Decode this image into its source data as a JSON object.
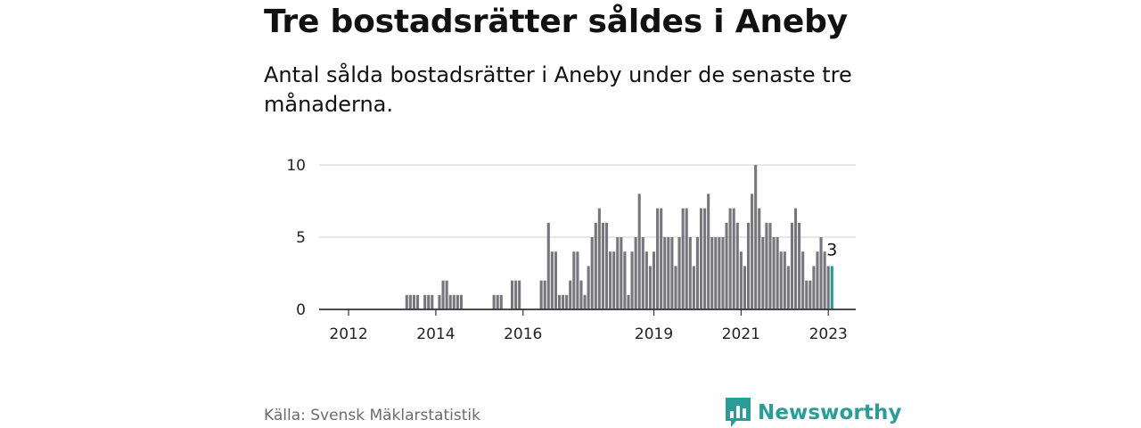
{
  "header": {
    "title": "Tre bostadsrätter såldes i Aneby",
    "subtitle": "Antal sålda bostadsrätter i Aneby under de senaste tre månaderna."
  },
  "footer": {
    "source": "Källa: Svensk Mäklarstatistik",
    "brand": "Newsworthy"
  },
  "colors": {
    "bar": "#76767c",
    "highlight": "#1a9e96",
    "brand": "#2a9d97",
    "grid": "#d9d9d9",
    "axis": "#333333"
  },
  "chart_data": {
    "type": "bar",
    "title": "Tre bostadsrätter såldes i Aneby",
    "xlabel": "",
    "ylabel": "",
    "ylim": [
      0,
      10
    ],
    "yticks": [
      "0",
      "5",
      "10"
    ],
    "xticks": [
      {
        "label": "2012",
        "index": 0
      },
      {
        "label": "2014",
        "index": 24
      },
      {
        "label": "2016",
        "index": 48
      },
      {
        "label": "2019",
        "index": 84
      },
      {
        "label": "2021",
        "index": 108
      },
      {
        "label": "2023",
        "index": 132
      }
    ],
    "period_start": "2012-01",
    "period_end": "2023-02",
    "series": [
      {
        "name": "Antal sålda bostadsrätter",
        "values": [
          0,
          0,
          0,
          0,
          0,
          0,
          0,
          0,
          0,
          0,
          0,
          0,
          0,
          0,
          0,
          0,
          1,
          1,
          1,
          1,
          0,
          1,
          1,
          1,
          0,
          1,
          2,
          2,
          1,
          1,
          1,
          1,
          0,
          0,
          0,
          0,
          0,
          0,
          0,
          0,
          1,
          1,
          1,
          0,
          0,
          2,
          2,
          2,
          0,
          0,
          0,
          0,
          0,
          2,
          2,
          6,
          4,
          4,
          1,
          1,
          1,
          2,
          4,
          4,
          2,
          1,
          3,
          5,
          6,
          7,
          6,
          6,
          4,
          4,
          5,
          5,
          4,
          1,
          4,
          5,
          8,
          5,
          4,
          3,
          4,
          7,
          7,
          5,
          5,
          5,
          3,
          5,
          7,
          7,
          5,
          3,
          5,
          7,
          7,
          8,
          5,
          5,
          5,
          5,
          6,
          7,
          7,
          6,
          4,
          3,
          6,
          8,
          10,
          7,
          5,
          6,
          6,
          5,
          5,
          4,
          4,
          3,
          6,
          7,
          6,
          4,
          2,
          2,
          3,
          4,
          5,
          4,
          3,
          3
        ]
      }
    ],
    "highlight_index": 133,
    "annotation": {
      "index": 133,
      "label": "3"
    }
  }
}
